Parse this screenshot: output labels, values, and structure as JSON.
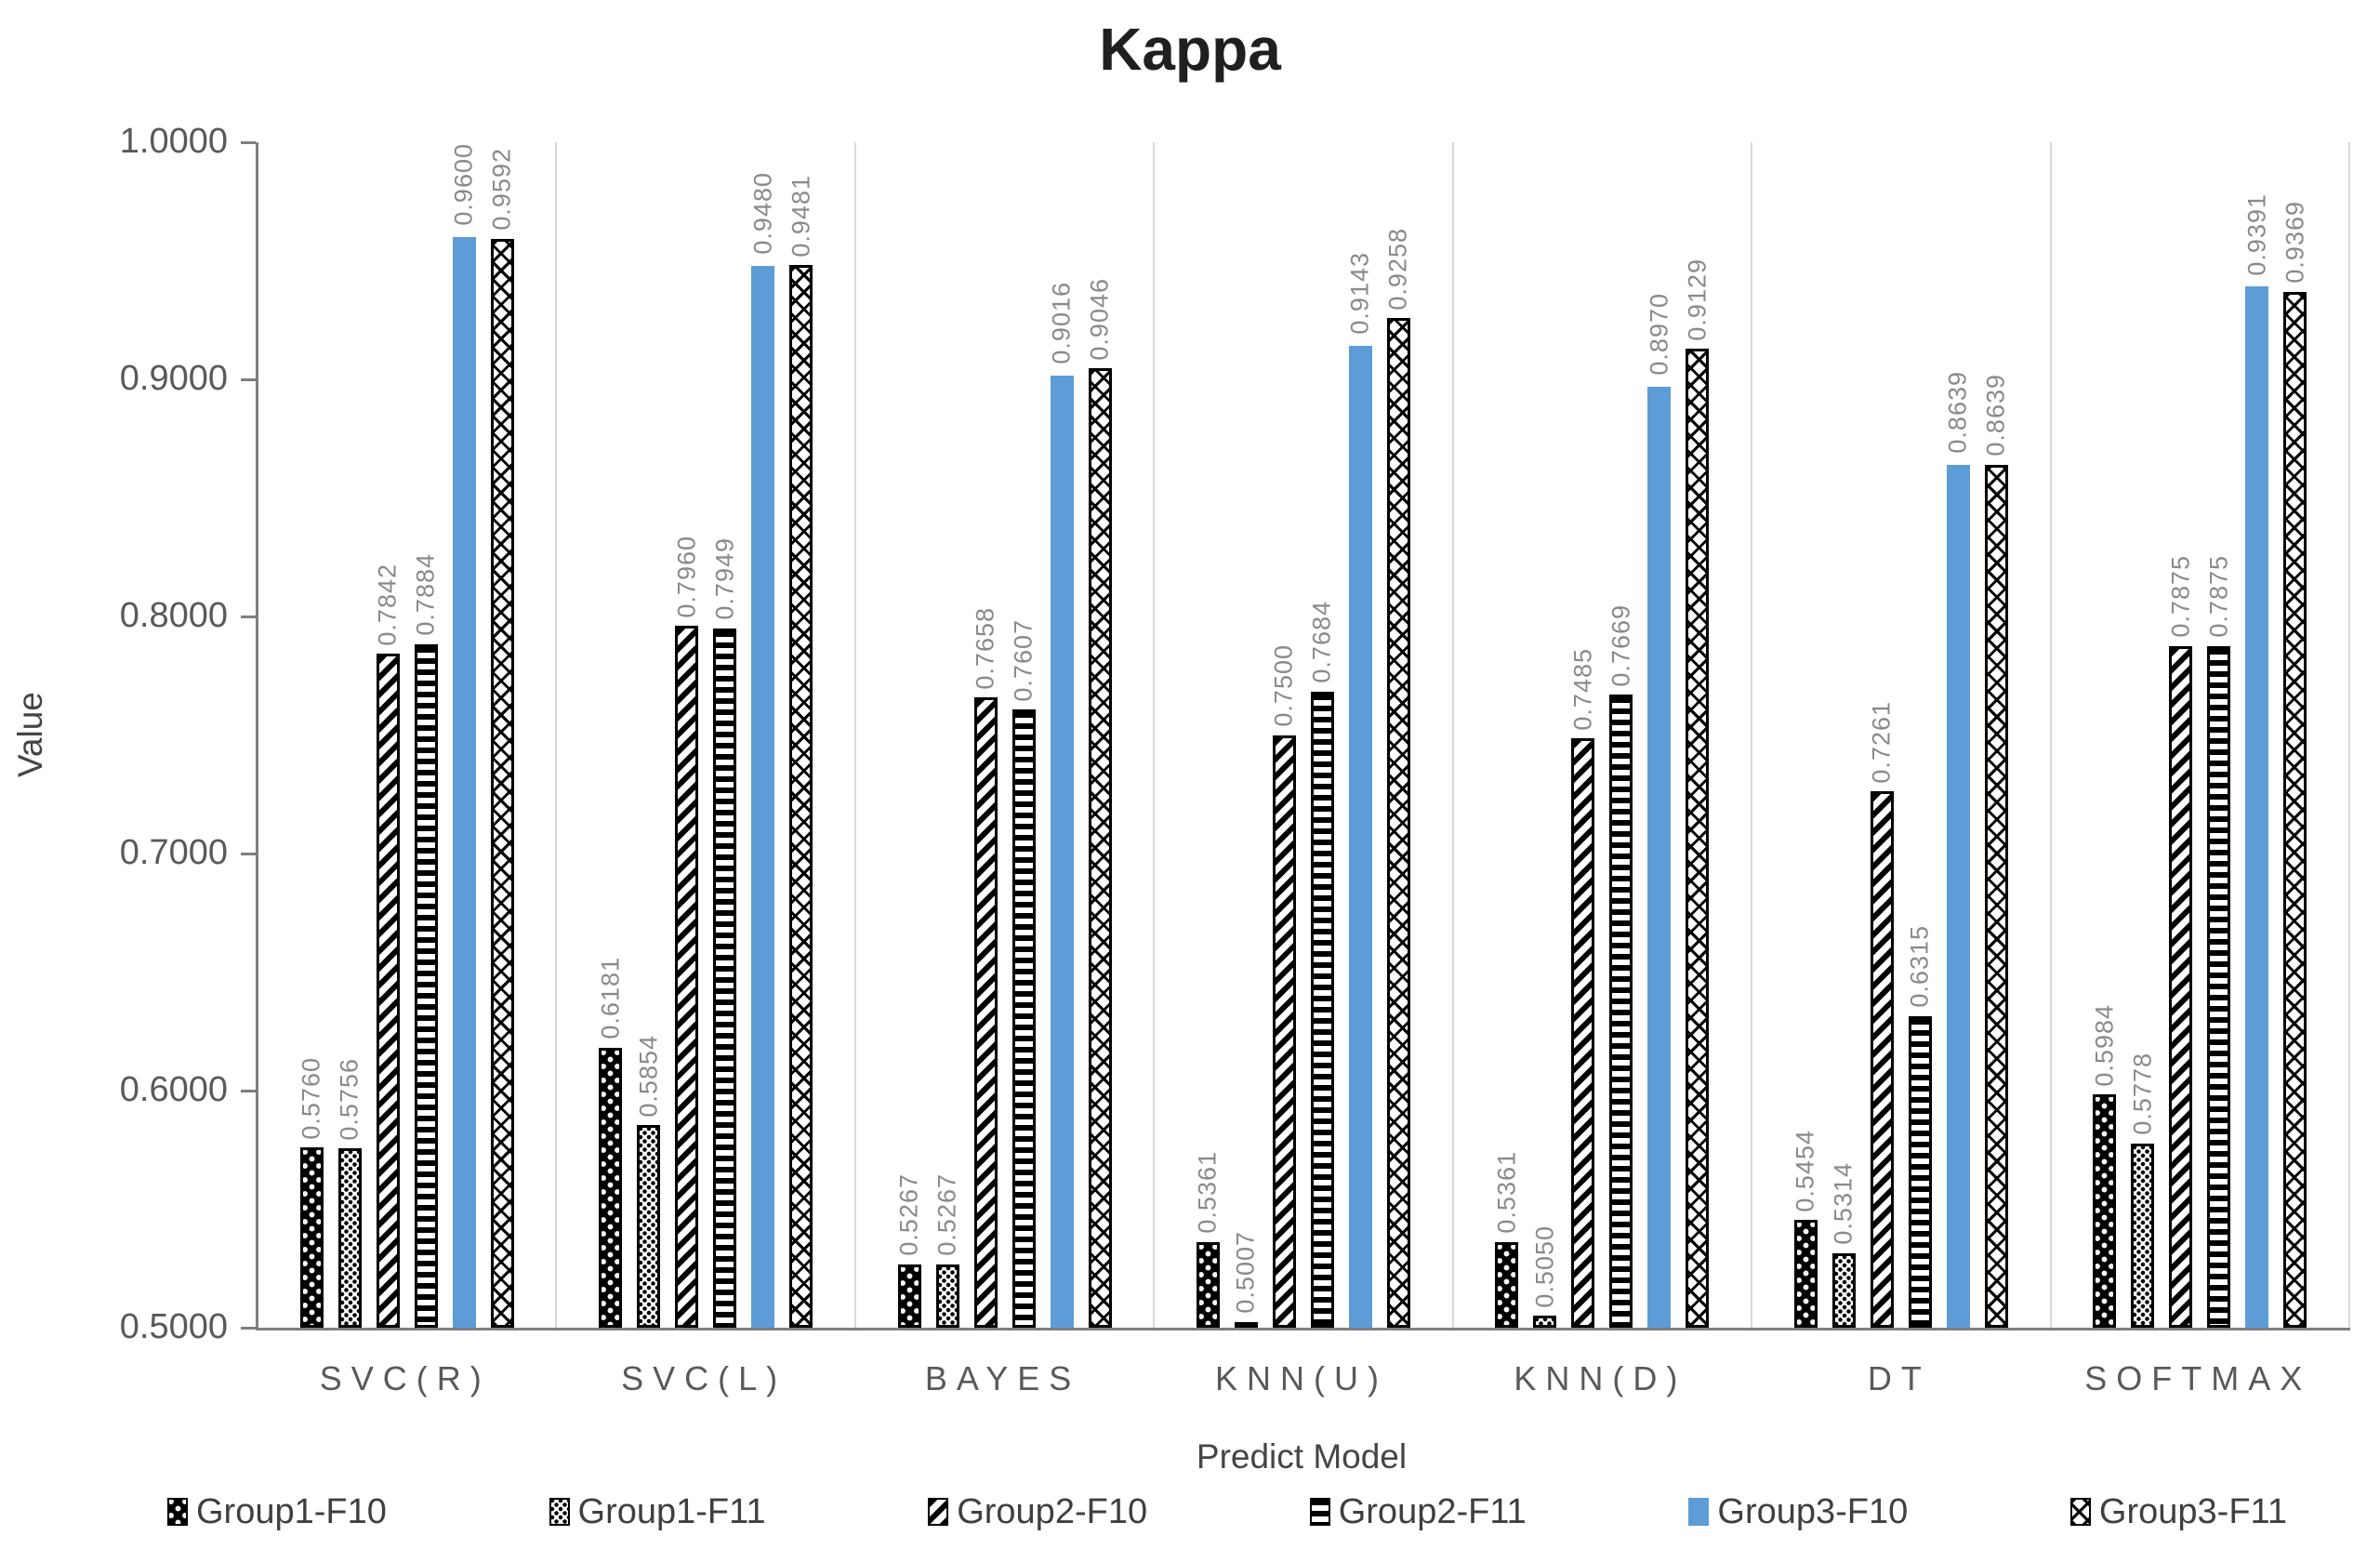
{
  "colors": {
    "series_blue": "#5d9cd6",
    "axis_line": "#7f7f7f",
    "category_separator": "#d9d9d9",
    "data_label_text": "#8a8a8a",
    "tick_label_text": "#595959",
    "legend_text": "#3f3f3f",
    "title_text": "#1f1f1f",
    "background": "#ffffff"
  },
  "chart_data": {
    "type": "bar",
    "title": "Kappa",
    "xlabel": "Predict Model",
    "ylabel": "Value",
    "ylim": [
      0.5,
      1.0
    ],
    "yticks": [
      "1.0000",
      "0.9000",
      "0.8000",
      "0.7000",
      "0.6000",
      "0.5000"
    ],
    "grid": "vertical-category-separators-only",
    "legend_position": "bottom",
    "data_label_format": "4-decimals-rotated-90",
    "categories": [
      "SVC(R)",
      "SVC(L)",
      "BAYES",
      "KNN(U)",
      "KNN(D)",
      "DT",
      "SOFTMAX"
    ],
    "series": [
      {
        "name": "Group1-F10",
        "pattern": "white-dots-on-black",
        "values": [
          0.576,
          0.6181,
          0.5267,
          0.5361,
          0.5361,
          0.5454,
          0.5984
        ]
      },
      {
        "name": "Group1-F11",
        "pattern": "black-dots-on-white",
        "values": [
          0.5756,
          0.5854,
          0.5267,
          0.5007,
          0.505,
          0.5314,
          0.5778
        ]
      },
      {
        "name": "Group2-F10",
        "pattern": "diagonal-stripes",
        "values": [
          0.7842,
          0.796,
          0.7658,
          0.75,
          0.7485,
          0.7261,
          0.7875
        ]
      },
      {
        "name": "Group2-F11",
        "pattern": "horizontal-stripes",
        "values": [
          0.7884,
          0.7949,
          0.7607,
          0.7684,
          0.7669,
          0.6315,
          0.7875
        ]
      },
      {
        "name": "Group3-F10",
        "pattern": "solid-blue",
        "values": [
          0.96,
          0.948,
          0.9016,
          0.9143,
          0.897,
          0.8639,
          0.9391
        ]
      },
      {
        "name": "Group3-F11",
        "pattern": "diagonal-lattice",
        "values": [
          0.9592,
          0.9481,
          0.9046,
          0.9258,
          0.9129,
          0.8639,
          0.9369
        ]
      }
    ]
  }
}
